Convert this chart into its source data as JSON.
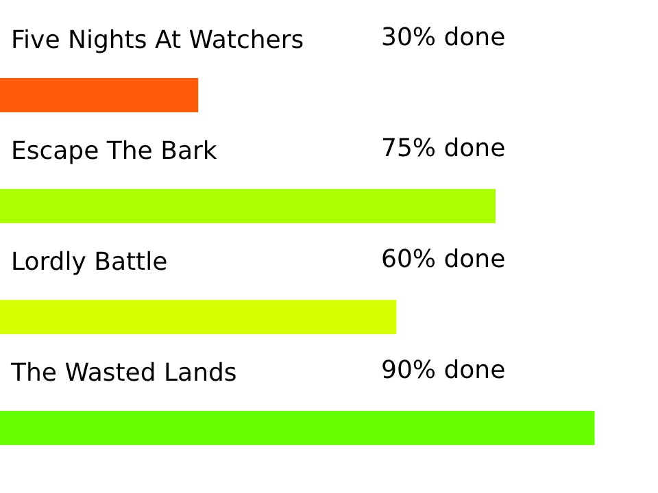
{
  "chart_data": {
    "type": "bar",
    "orientation": "horizontal",
    "categories": [
      "Five Nights At Watchers",
      "Escape The Bark",
      "Lordly Battle",
      "The Wasted Lands"
    ],
    "values": [
      30,
      75,
      60,
      90
    ],
    "colors": [
      "#ff5a0a",
      "#aaff00",
      "#d4ff00",
      "#66ff00"
    ],
    "value_labels": [
      "30% done",
      "75% done",
      "60% done",
      "90% done"
    ],
    "xlim": [
      0,
      100
    ]
  }
}
